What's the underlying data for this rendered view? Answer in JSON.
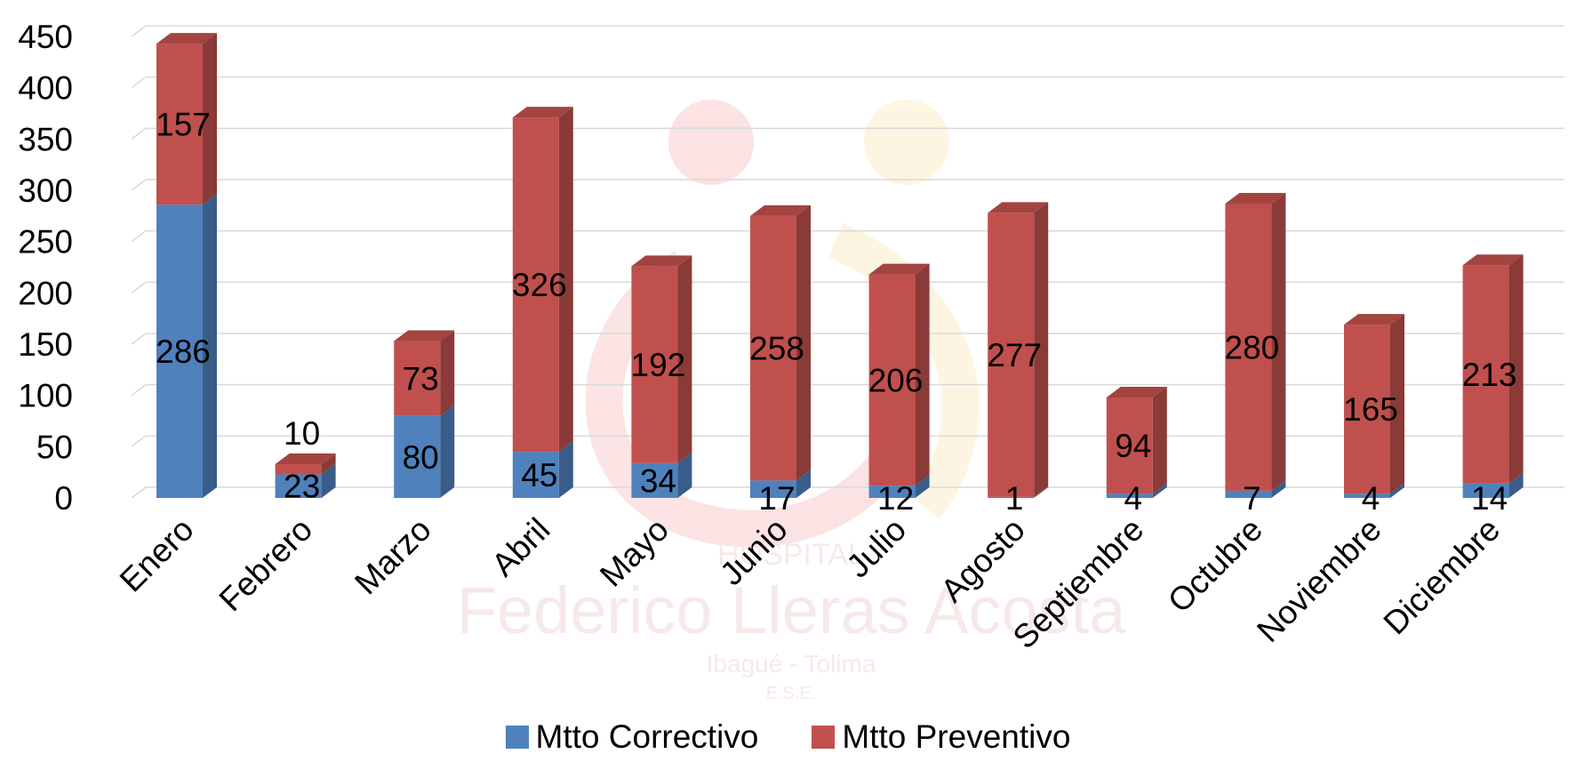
{
  "chart_data": {
    "type": "bar",
    "stacked": true,
    "style": "3d-column",
    "categories": [
      "Enero",
      "Febrero",
      "Marzo",
      "Abril",
      "Mayo",
      "Junio",
      "Julio",
      "Agosto",
      "Septiembre",
      "Octubre",
      "Noviembre",
      "Diciembre"
    ],
    "series": [
      {
        "name": "Mtto Correctivo",
        "color": "#4f81bd",
        "values": [
          286,
          23,
          80,
          45,
          34,
          17,
          12,
          1,
          4,
          7,
          4,
          14
        ]
      },
      {
        "name": "Mtto Preventivo",
        "color": "#c0504d",
        "values": [
          157,
          10,
          73,
          326,
          192,
          258,
          206,
          277,
          94,
          280,
          165,
          213
        ]
      }
    ],
    "yticks": [
      "0",
      "50",
      "100",
      "150",
      "200",
      "250",
      "300",
      "350",
      "400",
      "450"
    ],
    "ylim": [
      0,
      450
    ],
    "grid": true,
    "legend_position": "bottom",
    "title": "",
    "xlabel": "",
    "ylabel": ""
  },
  "watermark": {
    "logo_text": "HOSPITAL Federico Lleras Acosta",
    "sub_text": "Ibagué - Tolima E.S.E."
  }
}
